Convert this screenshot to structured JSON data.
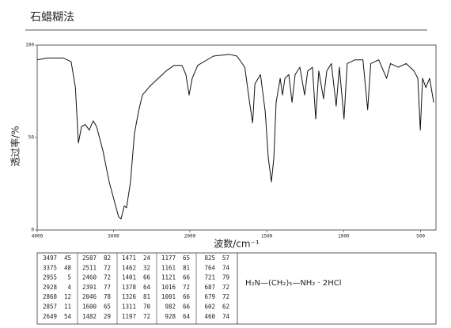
{
  "title": "石蜡糊法",
  "chart_data": {
    "type": "line",
    "xlabel": "波数/cm⁻¹",
    "ylabel": "透过率/%",
    "xlim": [
      4000,
      400
    ],
    "x_scale_break": 2000,
    "ylim": [
      0,
      100
    ],
    "xticks": [
      4000,
      3000,
      2000,
      1500,
      1000,
      500
    ],
    "yticks": [
      100,
      50,
      0
    ],
    "color": "#111",
    "x": [
      4000,
      3865,
      3658,
      3555,
      3500,
      3460,
      3420,
      3370,
      3318,
      3266,
      3223,
      3140,
      3057,
      2985,
      2933,
      2902,
      2860,
      2830,
      2778,
      2726,
      2674,
      2622,
      2518,
      2415,
      2311,
      2207,
      2104,
      2052,
      2010,
      1985,
      1949,
      1847,
      1745,
      1694,
      1643,
      1612,
      1592,
      1577,
      1541,
      1510,
      1490,
      1470,
      1454,
      1439,
      1413,
      1398,
      1382,
      1357,
      1336,
      1316,
      1285,
      1254,
      1234,
      1203,
      1182,
      1162,
      1131,
      1110,
      1080,
      1049,
      1028,
      998,
      977,
      926,
      875,
      844,
      824,
      772,
      721,
      696,
      645,
      594,
      543,
      518,
      502,
      487,
      466,
      441,
      415
    ],
    "values": [
      92,
      93,
      93,
      91,
      77,
      47,
      56,
      57,
      54,
      59,
      56,
      43,
      26,
      15,
      7,
      6,
      13,
      12,
      26,
      52,
      64,
      73,
      78,
      82,
      86,
      89,
      89,
      84,
      73,
      82,
      89,
      94,
      95,
      94,
      88,
      69,
      58,
      79,
      84,
      64,
      39,
      26,
      39,
      69,
      82,
      73,
      82,
      84,
      69,
      84,
      88,
      73,
      86,
      88,
      60,
      86,
      71,
      86,
      90,
      67,
      88,
      60,
      90,
      92,
      92,
      65,
      90,
      92,
      82,
      90,
      88,
      90,
      86,
      82,
      54,
      82,
      77,
      82,
      69
    ]
  },
  "peak_table": [
    [
      [
        3497,
        45
      ],
      [
        3375,
        48
      ],
      [
        2955,
        5
      ],
      [
        2928,
        4
      ],
      [
        2868,
        12
      ],
      [
        2857,
        11
      ],
      [
        2649,
        54
      ]
    ],
    [
      [
        2587,
        82
      ],
      [
        2511,
        72
      ],
      [
        2460,
        72
      ],
      [
        2391,
        77
      ],
      [
        2046,
        78
      ],
      [
        1600,
        65
      ],
      [
        1482,
        29
      ]
    ],
    [
      [
        1471,
        24
      ],
      [
        1462,
        32
      ],
      [
        1401,
        66
      ],
      [
        1378,
        64
      ],
      [
        1326,
        81
      ],
      [
        1311,
        70
      ],
      [
        1197,
        72
      ]
    ],
    [
      [
        1177,
        65
      ],
      [
        1161,
        81
      ],
      [
        1121,
        66
      ],
      [
        1016,
        72
      ],
      [
        1001,
        66
      ],
      [
        982,
        66
      ],
      [
        928,
        64
      ]
    ],
    [
      [
        825,
        57
      ],
      [
        764,
        74
      ],
      [
        721,
        79
      ],
      [
        687,
        72
      ],
      [
        679,
        72
      ],
      [
        602,
        62
      ],
      [
        460,
        74
      ]
    ]
  ],
  "formula": "H₂N—(CH₂)₅—NH₂   ·   2HCl"
}
